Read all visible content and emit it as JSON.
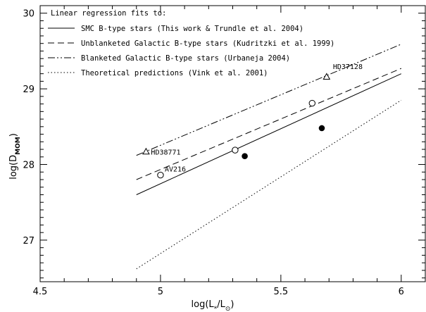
{
  "chart_data": {
    "type": "line",
    "xlabel": "log(L*/L⊙)",
    "ylabel": "log(D_MOM)",
    "xlim": [
      4.5,
      6.1
    ],
    "ylim": [
      26.45,
      30.1
    ],
    "xticks": [
      4.5,
      5.0,
      5.5,
      6.0
    ],
    "xtick_labels": [
      "4.5",
      "5",
      "5.5",
      "6"
    ],
    "yticks": [
      27,
      28,
      29,
      30
    ],
    "ytick_labels": [
      "27",
      "28",
      "29",
      "30"
    ],
    "grid": false,
    "legend": {
      "placement": "top-left",
      "title": "Linear regression fits to:",
      "entries": [
        {
          "label": "SMC B-type stars (This work & Trundle et al. 2004)",
          "style": "solid"
        },
        {
          "label": "Unblanketed Galactic B-type stars (Kudritzki et al. 1999)",
          "style": "dashed"
        },
        {
          "label": "Blanketed Galactic B-type stars (Urbaneja 2004)",
          "style": "dash-dot-dot"
        },
        {
          "label": "Theoretical predictions (Vink et al. 2001)",
          "style": "dotted"
        }
      ]
    },
    "series": [
      {
        "style": "solid",
        "x": [
          4.9,
          6.0
        ],
        "y": [
          27.6,
          29.2
        ]
      },
      {
        "style": "dashed",
        "x": [
          4.9,
          6.0
        ],
        "y": [
          27.8,
          29.27
        ]
      },
      {
        "style": "dash-dot-dot",
        "x": [
          4.9,
          6.0
        ],
        "y": [
          28.12,
          29.59
        ]
      },
      {
        "style": "dotted",
        "x": [
          4.9,
          6.0
        ],
        "y": [
          26.62,
          28.85
        ]
      }
    ],
    "points": {
      "open_circle": [
        {
          "x": 5.0,
          "y": 27.86
        },
        {
          "x": 5.31,
          "y": 28.19
        },
        {
          "x": 5.63,
          "y": 28.81
        }
      ],
      "filled_circle": [
        {
          "x": 5.35,
          "y": 28.11
        },
        {
          "x": 5.67,
          "y": 28.48
        }
      ],
      "triangle": [
        {
          "x": 4.94,
          "y": 28.17
        },
        {
          "x": 5.69,
          "y": 29.16
        }
      ]
    },
    "annotations": [
      {
        "text": "HD38771",
        "x": 4.94,
        "y": 28.17
      },
      {
        "text": "HD37128",
        "x": 5.69,
        "y": 29.16
      },
      {
        "text": "AV216",
        "x": 5.0,
        "y": 27.86
      }
    ]
  }
}
